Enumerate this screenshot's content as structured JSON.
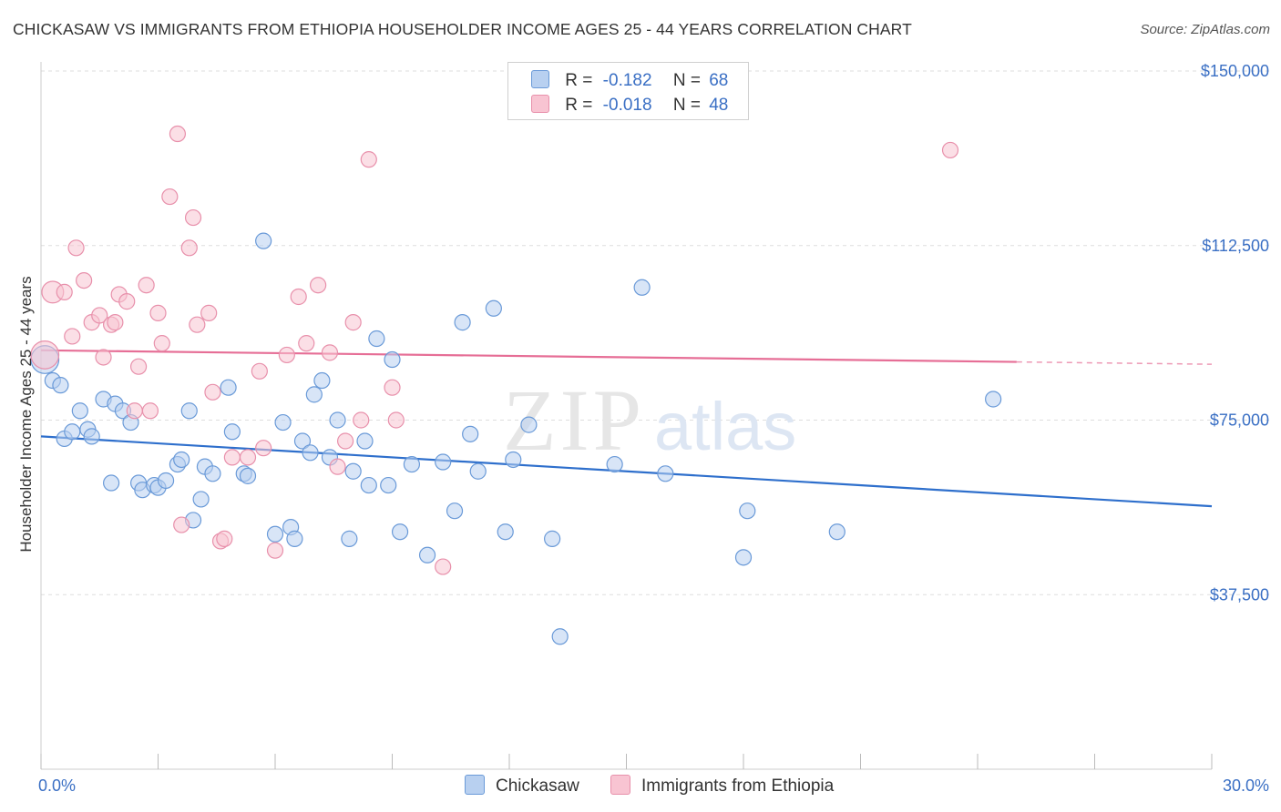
{
  "header": {
    "title": "CHICKASAW VS IMMIGRANTS FROM ETHIOPIA HOUSEHOLDER INCOME AGES 25 - 44 YEARS CORRELATION CHART",
    "source": "Source: ZipAtlas.com"
  },
  "watermark": {
    "zip": "ZIP",
    "atlas": "atlas"
  },
  "legend": {
    "rows": [
      {
        "r_label": "R =",
        "r_value": "-0.182",
        "n_label": "N =",
        "n_value": "68"
      },
      {
        "r_label": "R =",
        "r_value": "-0.018",
        "n_label": "N =",
        "n_value": "48"
      }
    ]
  },
  "colors": {
    "blue_fill": "#b8d0f0",
    "blue_stroke": "#6a9ad8",
    "blue_line": "#2e6fcc",
    "pink_fill": "#f8c4d2",
    "pink_stroke": "#e890ab",
    "pink_line": "#e66e96",
    "grid": "#dddddd",
    "axis_label": "#3a6fc4"
  },
  "chart_data": {
    "type": "scatter",
    "title": "CHICKASAW VS IMMIGRANTS FROM ETHIOPIA HOUSEHOLDER INCOME AGES 25 - 44 YEARS CORRELATION CHART",
    "xlabel": "",
    "ylabel": "Householder Income Ages 25 - 44 years",
    "xlim": [
      0,
      30
    ],
    "ylim": [
      0,
      150000
    ],
    "x_tick_labels": [
      "0.0%",
      "30.0%"
    ],
    "y_ticks": [
      37500,
      75000,
      112500,
      150000
    ],
    "y_tick_labels": [
      "$37,500",
      "$75,000",
      "$112,500",
      "$150,000"
    ],
    "grid": true,
    "legend_position": "bottom-center",
    "series": [
      {
        "name": "Chickasaw",
        "color": "blue",
        "trend": {
          "x0": 0,
          "y0": 71500,
          "x1": 30,
          "y1": 56500
        },
        "points": [
          [
            0.1,
            88000,
            1.8
          ],
          [
            0.3,
            83500,
            1
          ],
          [
            0.5,
            82500,
            1
          ],
          [
            0.6,
            71000,
            1
          ],
          [
            0.8,
            72500,
            1
          ],
          [
            1.0,
            77000,
            1
          ],
          [
            1.2,
            73000,
            1
          ],
          [
            1.3,
            71500,
            1
          ],
          [
            1.6,
            79500,
            1
          ],
          [
            1.8,
            61500,
            1
          ],
          [
            1.9,
            78500,
            1
          ],
          [
            2.1,
            77000,
            1
          ],
          [
            2.3,
            74500,
            1
          ],
          [
            2.5,
            61500,
            1
          ],
          [
            2.6,
            60000,
            1
          ],
          [
            2.9,
            61000,
            1
          ],
          [
            3.0,
            60500,
            1
          ],
          [
            3.2,
            62000,
            1
          ],
          [
            3.5,
            65500,
            1
          ],
          [
            3.6,
            66500,
            1
          ],
          [
            3.8,
            77000,
            1
          ],
          [
            3.9,
            53500,
            1
          ],
          [
            4.1,
            58000,
            1
          ],
          [
            4.2,
            65000,
            1
          ],
          [
            4.4,
            63500,
            1
          ],
          [
            4.8,
            82000,
            1
          ],
          [
            4.9,
            72500,
            1
          ],
          [
            5.2,
            63500,
            1
          ],
          [
            5.3,
            63000,
            1
          ],
          [
            5.7,
            113500,
            1
          ],
          [
            6.0,
            50500,
            1
          ],
          [
            6.2,
            74500,
            1
          ],
          [
            6.4,
            52000,
            1
          ],
          [
            6.5,
            49500,
            1
          ],
          [
            6.7,
            70500,
            1
          ],
          [
            6.9,
            68000,
            1
          ],
          [
            7.0,
            80500,
            1
          ],
          [
            7.2,
            83500,
            1
          ],
          [
            7.4,
            67000,
            1
          ],
          [
            7.6,
            75000,
            1
          ],
          [
            7.9,
            49500,
            1
          ],
          [
            8.0,
            64000,
            1
          ],
          [
            8.3,
            70500,
            1
          ],
          [
            8.4,
            61000,
            1
          ],
          [
            8.6,
            92500,
            1
          ],
          [
            8.9,
            61000,
            1
          ],
          [
            9.0,
            88000,
            1
          ],
          [
            9.2,
            51000,
            1
          ],
          [
            9.5,
            65500,
            1
          ],
          [
            9.9,
            46000,
            1
          ],
          [
            10.3,
            66000,
            1
          ],
          [
            10.6,
            55500,
            1
          ],
          [
            10.8,
            96000,
            1
          ],
          [
            11.0,
            72000,
            1
          ],
          [
            11.2,
            64000,
            1
          ],
          [
            11.6,
            99000,
            1
          ],
          [
            11.9,
            51000,
            1
          ],
          [
            12.1,
            66500,
            1
          ],
          [
            12.5,
            74000,
            1
          ],
          [
            13.1,
            49500,
            1
          ],
          [
            13.3,
            28500,
            1
          ],
          [
            14.7,
            65500,
            1
          ],
          [
            15.4,
            103500,
            1
          ],
          [
            16.0,
            63500,
            1
          ],
          [
            18.1,
            55500,
            1
          ],
          [
            18.0,
            45500,
            1
          ],
          [
            20.4,
            51000,
            1
          ],
          [
            24.4,
            79500,
            1
          ]
        ]
      },
      {
        "name": "Immigrants from Ethiopia",
        "color": "pink",
        "trend": {
          "x0": 0,
          "y0": 90000,
          "x1": 25,
          "y1": 87500,
          "dash_to_x": 30,
          "dash_to_y": 87000
        },
        "points": [
          [
            0.1,
            89000,
            1.8
          ],
          [
            0.3,
            102500,
            1.4
          ],
          [
            0.6,
            102500,
            1
          ],
          [
            0.8,
            93000,
            1
          ],
          [
            0.9,
            112000,
            1
          ],
          [
            1.1,
            105000,
            1
          ],
          [
            1.3,
            96000,
            1
          ],
          [
            1.5,
            97500,
            1
          ],
          [
            1.6,
            88500,
            1
          ],
          [
            1.8,
            95500,
            1
          ],
          [
            1.9,
            96000,
            1
          ],
          [
            2.0,
            102000,
            1
          ],
          [
            2.2,
            100500,
            1
          ],
          [
            2.4,
            77000,
            1
          ],
          [
            2.5,
            86500,
            1
          ],
          [
            2.7,
            104000,
            1
          ],
          [
            2.8,
            77000,
            1
          ],
          [
            3.0,
            98000,
            1
          ],
          [
            3.1,
            91500,
            1
          ],
          [
            3.3,
            123000,
            1
          ],
          [
            3.5,
            136500,
            1
          ],
          [
            3.6,
            52500,
            1
          ],
          [
            3.8,
            112000,
            1
          ],
          [
            3.9,
            118500,
            1
          ],
          [
            4.0,
            95500,
            1
          ],
          [
            4.3,
            98000,
            1
          ],
          [
            4.4,
            81000,
            1
          ],
          [
            4.6,
            49000,
            1
          ],
          [
            4.7,
            49500,
            1
          ],
          [
            4.9,
            67000,
            1
          ],
          [
            5.3,
            67000,
            1
          ],
          [
            5.6,
            85500,
            1
          ],
          [
            5.7,
            69000,
            1
          ],
          [
            6.0,
            47000,
            1
          ],
          [
            6.3,
            89000,
            1
          ],
          [
            6.6,
            101500,
            1
          ],
          [
            6.8,
            91500,
            1
          ],
          [
            7.1,
            104000,
            1
          ],
          [
            7.4,
            89500,
            1
          ],
          [
            7.6,
            65000,
            1
          ],
          [
            7.8,
            70500,
            1
          ],
          [
            8.0,
            96000,
            1
          ],
          [
            8.2,
            75000,
            1
          ],
          [
            8.4,
            131000,
            1
          ],
          [
            9.0,
            82000,
            1
          ],
          [
            9.1,
            75000,
            1
          ],
          [
            10.3,
            43500,
            1
          ],
          [
            23.3,
            133000,
            1
          ]
        ]
      }
    ]
  },
  "bottom_legend": {
    "items": [
      {
        "label": "Chickasaw"
      },
      {
        "label": "Immigrants from Ethiopia"
      }
    ]
  }
}
